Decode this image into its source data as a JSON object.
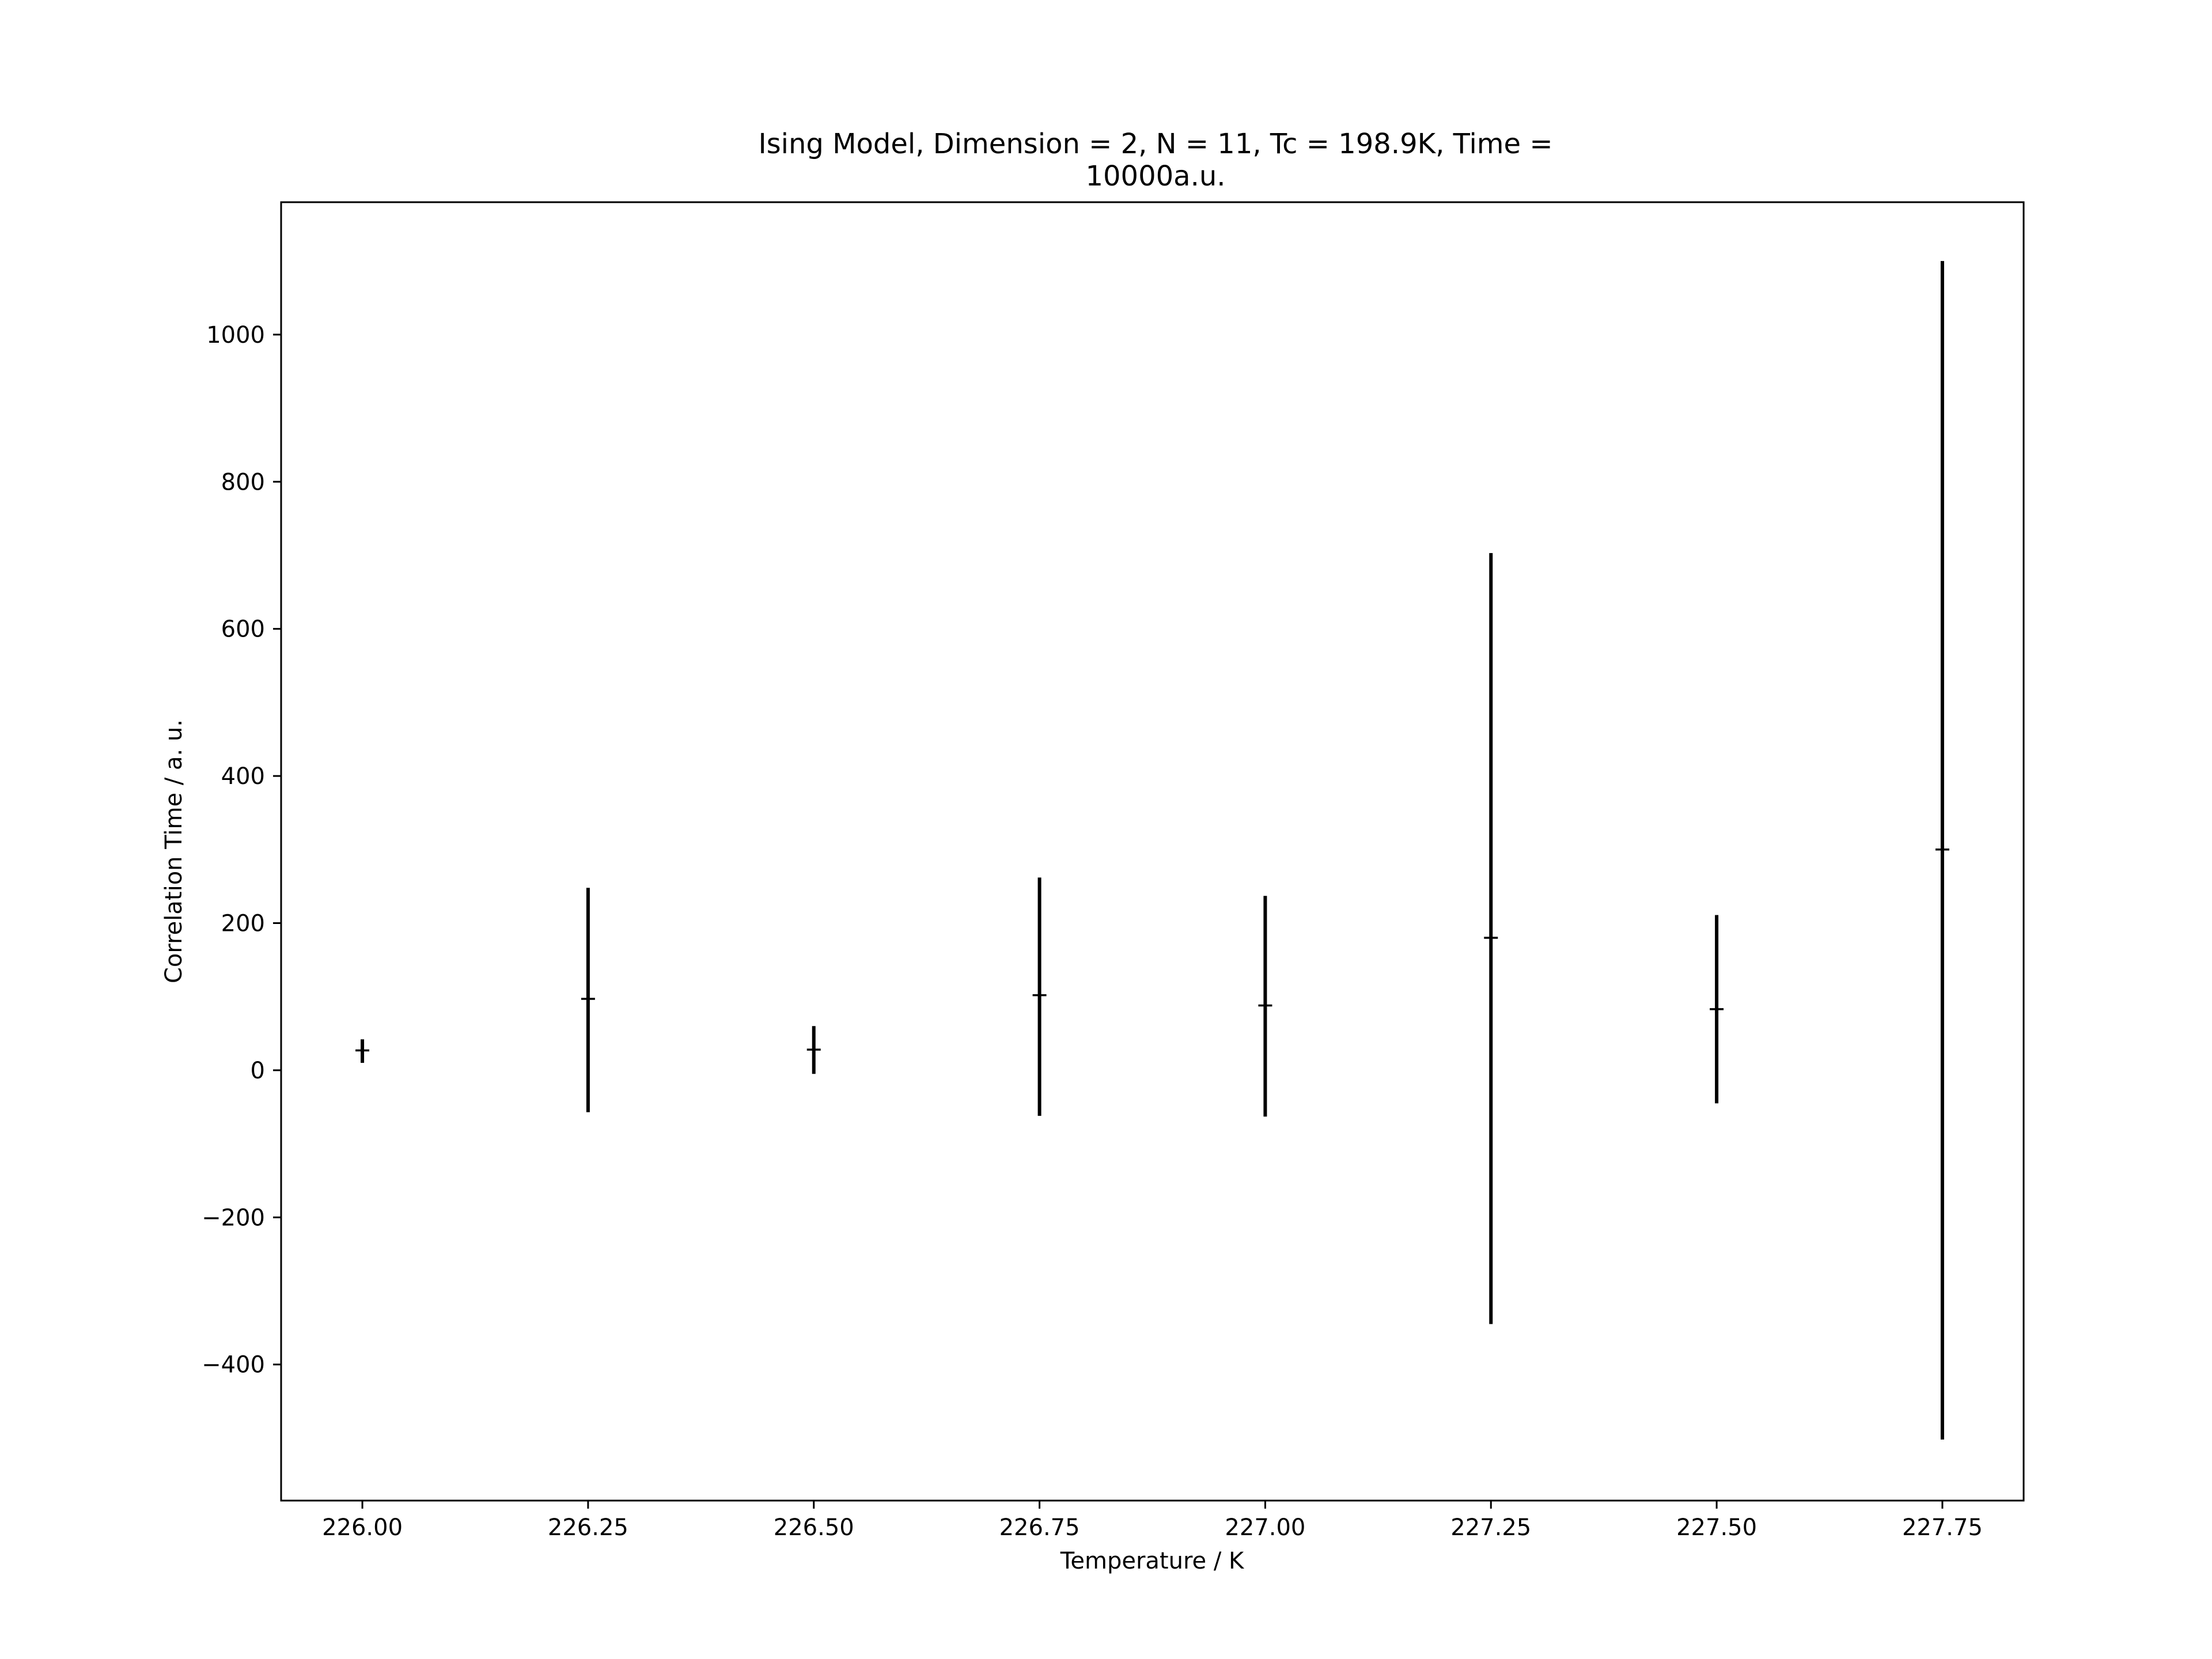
{
  "chart_data": {
    "type": "scatter",
    "title_lines": [
      "Ising Model, Dimension = 2, N = 11, Tc = 198.9K, Time =",
      "10000a.u."
    ],
    "xlabel": "Temperature / K",
    "ylabel": "Correlation Time / a. u.",
    "xlim": [
      225.91,
      227.84
    ],
    "ylim": [
      -585,
      1180
    ],
    "x_ticks": [
      226.0,
      226.25,
      226.5,
      226.75,
      227.0,
      227.25,
      227.5,
      227.75
    ],
    "x_tick_labels": [
      "226.00",
      "226.25",
      "226.50",
      "226.75",
      "227.00",
      "227.25",
      "227.50",
      "227.75"
    ],
    "y_ticks": [
      -400,
      -200,
      0,
      200,
      400,
      600,
      800,
      1000
    ],
    "y_tick_labels": [
      "−400",
      "−200",
      "0",
      "200",
      "400",
      "600",
      "800",
      "1000"
    ],
    "grid": false,
    "legend": "none",
    "series": [
      {
        "x": [
          226.0,
          226.25,
          226.5,
          226.75,
          227.0,
          227.25,
          227.5,
          227.75
        ],
        "y": [
          27,
          97,
          28,
          102,
          88,
          180,
          83,
          300
        ],
        "y_err_low": [
          10,
          -57,
          -5,
          -62,
          -63,
          -345,
          -45,
          -502
        ],
        "y_err_high": [
          42,
          248,
          60,
          262,
          237,
          703,
          211,
          1100
        ],
        "color": "#000000"
      }
    ]
  }
}
